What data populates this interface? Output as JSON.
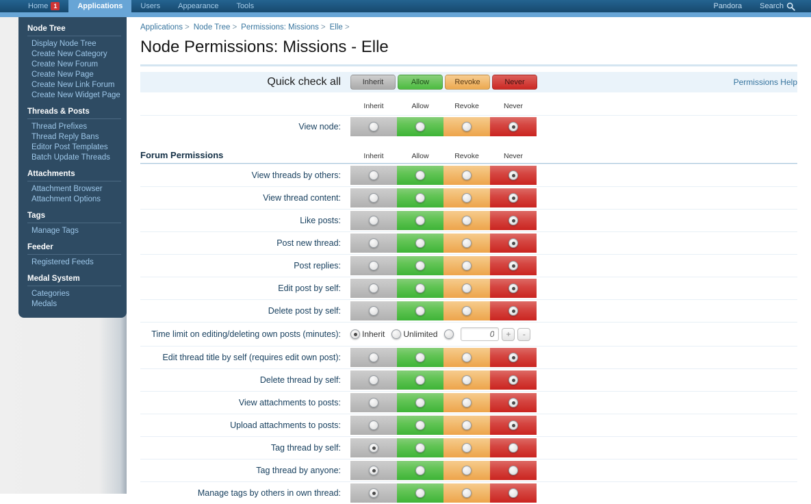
{
  "topnav": {
    "tabs": [
      {
        "label": "Home",
        "badge": "1"
      },
      {
        "label": "Applications",
        "active": true
      },
      {
        "label": "Users"
      },
      {
        "label": "Appearance"
      },
      {
        "label": "Tools"
      }
    ],
    "pandora_label": "Pandora",
    "search_label": "Search"
  },
  "sidebar": {
    "sections": [
      {
        "title": "Node Tree",
        "items": [
          "Display Node Tree",
          "Create New Category",
          "Create New Forum",
          "Create New Page",
          "Create New Link Forum",
          "Create New Widget Page"
        ]
      },
      {
        "title": "Threads & Posts",
        "items": [
          "Thread Prefixes",
          "Thread Reply Bans",
          "Editor Post Templates",
          "Batch Update Threads"
        ]
      },
      {
        "title": "Attachments",
        "items": [
          "Attachment Browser",
          "Attachment Options"
        ]
      },
      {
        "title": "Tags",
        "items": [
          "Manage Tags"
        ]
      },
      {
        "title": "Feeder",
        "items": [
          "Registered Feeds"
        ]
      },
      {
        "title": "Medal System",
        "items": [
          "Categories",
          "Medals"
        ]
      }
    ]
  },
  "breadcrumb": [
    "Applications",
    "Node Tree",
    "Permissions: Missions",
    "Elle"
  ],
  "page": {
    "title": "Node Permissions: Missions - Elle",
    "help_link": "Permissions Help"
  },
  "quick_check": {
    "label": "Quick check all",
    "buttons": [
      {
        "label": "Inherit",
        "key": "inherit"
      },
      {
        "label": "Allow",
        "key": "allow"
      },
      {
        "label": "Revoke",
        "key": "revoke"
      },
      {
        "label": "Never",
        "key": "never"
      }
    ]
  },
  "columns": [
    "Inherit",
    "Allow",
    "Revoke",
    "Never"
  ],
  "colors": {
    "inherit": "#b5b5b5",
    "allow": "#4cbb40",
    "revoke": "#efad52",
    "never": "#cd2b27",
    "nav_bar": "#1d5884",
    "nav_active": "#68a5d6",
    "sidebar_bg": "#2e4b63"
  },
  "node_permission": {
    "label": "View node:",
    "selected": "never"
  },
  "forum_permissions": {
    "title": "Forum Permissions",
    "rows": [
      {
        "type": "grid",
        "label": "View threads by others:",
        "selected": "never"
      },
      {
        "type": "grid",
        "label": "View thread content:",
        "selected": "never"
      },
      {
        "type": "grid",
        "label": "Like posts:",
        "selected": "never"
      },
      {
        "type": "grid",
        "label": "Post new thread:",
        "selected": "never"
      },
      {
        "type": "grid",
        "label": "Post replies:",
        "selected": "never"
      },
      {
        "type": "grid",
        "label": "Edit post by self:",
        "selected": "never"
      },
      {
        "type": "grid",
        "label": "Delete post by self:",
        "selected": "never"
      },
      {
        "type": "time_limit",
        "label": "Time limit on editing/deleting own posts (minutes):",
        "options": [
          "Inherit",
          "Unlimited",
          ""
        ],
        "selected": "Inherit",
        "value": "0",
        "plus_label": "+",
        "minus_label": "-"
      },
      {
        "type": "grid",
        "label": "Edit thread title by self (requires edit own post):",
        "selected": "never"
      },
      {
        "type": "grid",
        "label": "Delete thread by self:",
        "selected": "never"
      },
      {
        "type": "grid",
        "label": "View attachments to posts:",
        "selected": "never"
      },
      {
        "type": "grid",
        "label": "Upload attachments to posts:",
        "selected": "never"
      },
      {
        "type": "grid",
        "label": "Tag thread by self:",
        "selected": "inherit"
      },
      {
        "type": "grid",
        "label": "Tag thread by anyone:",
        "selected": "inherit"
      },
      {
        "type": "grid",
        "label": "Manage tags by others in own thread:",
        "selected": "inherit"
      }
    ]
  }
}
